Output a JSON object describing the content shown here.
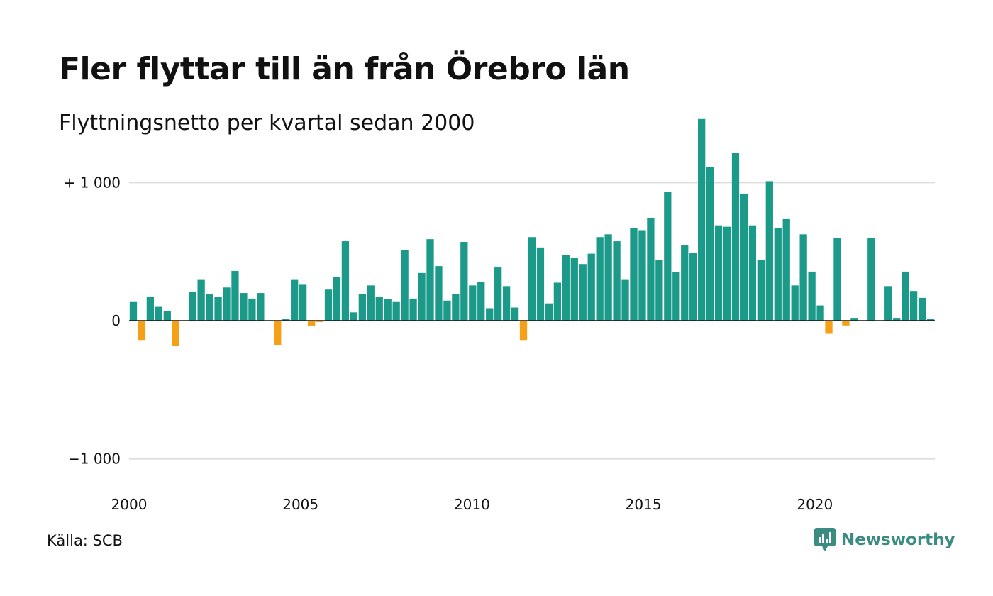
{
  "title": "Fler flyttar till än från Örebro län",
  "subtitle": "Flyttningsnetto per kvartal sedan 2000",
  "source": "Källa: SCB",
  "brand": {
    "name": "Newsworthy",
    "icon": "newsworthy-logo-icon",
    "color": "#3a8b82"
  },
  "chart_data": {
    "type": "bar",
    "title": "Fler flyttar till än från Örebro län",
    "subtitle": "Flyttningsnetto per kvartal sedan 2000",
    "xlabel": "",
    "ylabel": "",
    "ylim": [
      -1500,
      1500
    ],
    "y_ticks": [
      {
        "value": 1000,
        "label": "+ 1 000"
      },
      {
        "value": 0,
        "label": "0"
      },
      {
        "value": -1000,
        "label": "−1 000"
      }
    ],
    "x_ticks": [
      {
        "value": 2000,
        "label": "2000"
      },
      {
        "value": 2005,
        "label": "2005"
      },
      {
        "value": 2010,
        "label": "2010"
      },
      {
        "value": 2015,
        "label": "2015"
      },
      {
        "value": 2020,
        "label": "2020"
      }
    ],
    "x_start": 2000,
    "x_end": 2023.5,
    "periods_per_year": 4,
    "colors": {
      "positive": "#1b9a8a",
      "negative": "#f5a016",
      "grid": "#dddddd",
      "axis": "#111111"
    },
    "grid": true,
    "legend": "none",
    "values": [
      140,
      -140,
      175,
      105,
      70,
      -185,
      0,
      210,
      300,
      195,
      170,
      240,
      360,
      200,
      160,
      200,
      0,
      -175,
      15,
      300,
      265,
      -40,
      -10,
      225,
      315,
      575,
      60,
      195,
      255,
      170,
      155,
      140,
      510,
      160,
      345,
      590,
      395,
      145,
      195,
      570,
      255,
      280,
      90,
      385,
      250,
      95,
      -140,
      605,
      530,
      125,
      275,
      475,
      455,
      410,
      485,
      605,
      625,
      575,
      300,
      670,
      655,
      745,
      440,
      930,
      350,
      545,
      490,
      1460,
      1110,
      690,
      680,
      1215,
      920,
      690,
      440,
      1010,
      670,
      740,
      255,
      625,
      355,
      110,
      -95,
      600,
      -35,
      20,
      0,
      600,
      0,
      250,
      20,
      355,
      215,
      165,
      15
    ]
  }
}
